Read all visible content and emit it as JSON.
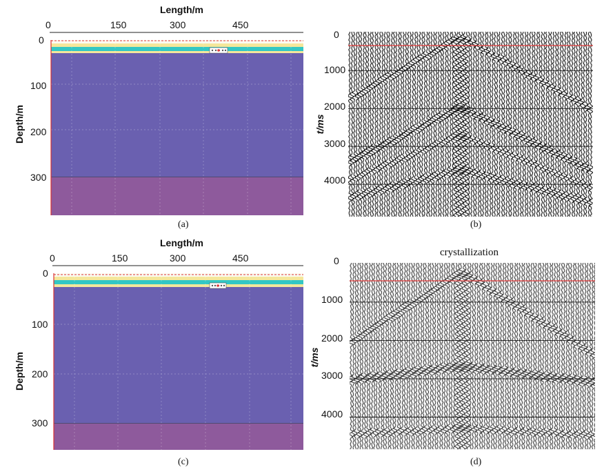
{
  "panels": {
    "a": {
      "caption": "(a)",
      "xlabel": "Length/m",
      "ylabel": "Depth/m",
      "x_ticks": [
        "0",
        "150",
        "300",
        "450"
      ],
      "y_ticks": [
        "0",
        "100",
        "200",
        "300"
      ]
    },
    "b": {
      "caption": "(b)",
      "ylabel": "t/ms",
      "y_ticks": [
        "0",
        "1000",
        "2000",
        "3000",
        "4000"
      ]
    },
    "c": {
      "caption": "(c)",
      "xlabel": "Length/m",
      "ylabel": "Depth/m",
      "x_ticks": [
        "0",
        "150",
        "300",
        "450"
      ],
      "y_ticks": [
        "0",
        "100",
        "200",
        "300"
      ]
    },
    "d": {
      "caption": "(d)",
      "title": "crystallization",
      "ylabel": "t/ms",
      "y_ticks": [
        "0",
        "1000",
        "2000",
        "3000",
        "4000"
      ]
    }
  },
  "colors": {
    "deep_layer": "#6a60b0",
    "bottom_layer": "#8e5a9c",
    "cyan_layer": "#33c7c4",
    "yellow_layer": "#f4e79b",
    "seismic_trace": "#111111",
    "seismic_trace_d": "#3c3c3c",
    "reference_line": "#e23b3b"
  }
}
